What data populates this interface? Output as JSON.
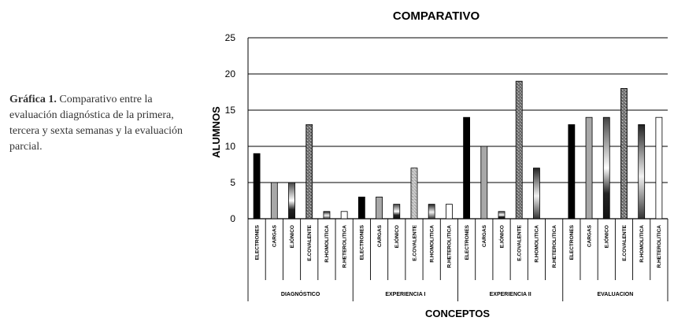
{
  "caption": {
    "label": "Gráfica 1.",
    "text": "Comparativo entre la evaluación diagnóstica de la primera, tercera y sexta semanas y la evaluación parcial."
  },
  "chart_data": {
    "type": "bar",
    "title": "COMPARATIVO",
    "xlabel": "CONCEPTOS",
    "ylabel": "ALUMNOS",
    "ylim": [
      0,
      25
    ],
    "yticks": [
      0,
      5,
      10,
      15,
      20,
      25
    ],
    "grid": true,
    "legend": "none",
    "groups": [
      {
        "name": "DIAGNÓSTICO",
        "categories": [
          "ELECTRONES",
          "CARGAS",
          "E.IÓNICO",
          "E.COVALENTE",
          "R.HOMOLITICA",
          "R.HETEROLITICA"
        ],
        "values": [
          9,
          5,
          5,
          13,
          1,
          1
        ]
      },
      {
        "name": "EXPERIENCIA I",
        "categories": [
          "ELECTRONES",
          "CARGAS",
          "E.IÓNICO",
          "E.COVALENTE",
          "R.HOMOLITICA",
          "R.HETEROLITICA"
        ],
        "values": [
          3,
          3,
          2,
          7,
          2,
          2
        ]
      },
      {
        "name": "EXPERIENCIA II",
        "categories": [
          "ELECTRONES",
          "CARGAS",
          "E.IÓNICO",
          "E.COVALENTE",
          "R.HOMOLITICA",
          "R.HETEROLITICA"
        ],
        "values": [
          14,
          10,
          1,
          19,
          7,
          0
        ]
      },
      {
        "name": "EVALUACION",
        "categories": [
          "ELECTRONES",
          "CARGAS",
          "E.IÓNICO",
          "E.COVALENTE",
          "R.HOMOLITICA",
          "R.HETEROLITICA"
        ],
        "values": [
          13,
          14,
          14,
          18,
          13,
          14
        ]
      }
    ]
  }
}
